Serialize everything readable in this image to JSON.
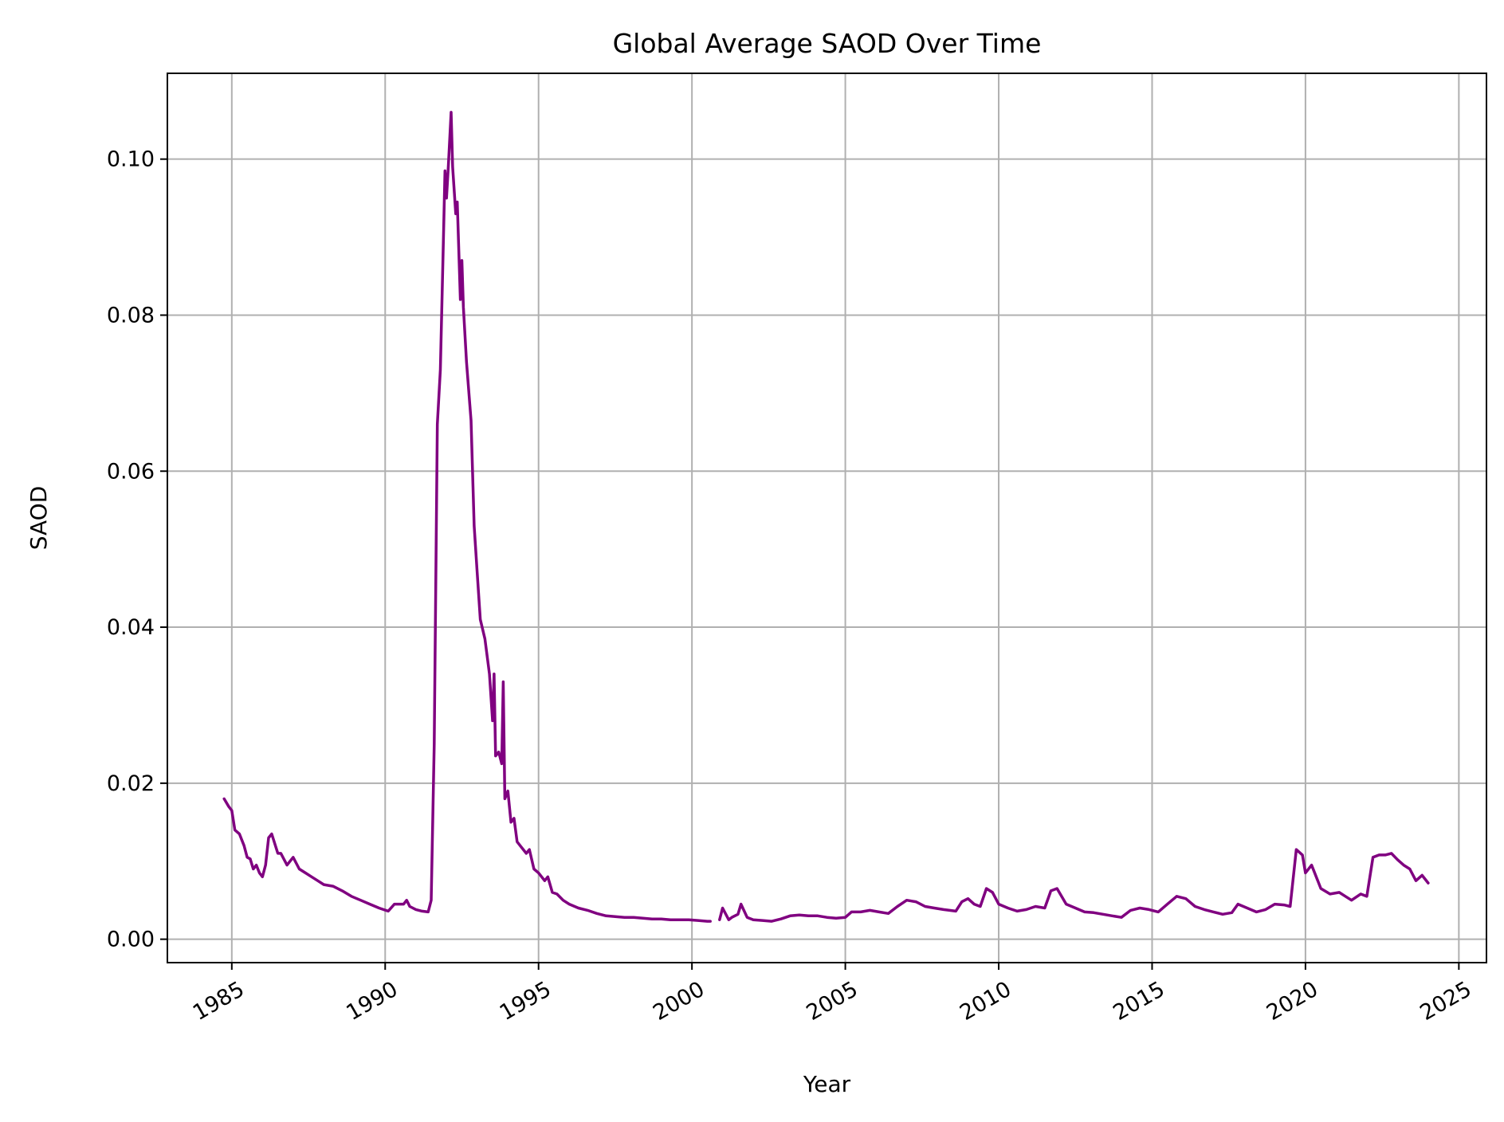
{
  "chart_data": {
    "type": "line",
    "title": "Global Average SAOD Over Time",
    "xlabel": "Year",
    "ylabel": "SAOD",
    "xlim": [
      1982.9,
      2025.9
    ],
    "ylim": [
      -0.003,
      0.111
    ],
    "x_ticks": [
      1985,
      1990,
      1995,
      2000,
      2005,
      2010,
      2015,
      2020,
      2025
    ],
    "y_ticks": [
      0.0,
      0.02,
      0.04,
      0.06,
      0.08,
      0.1
    ],
    "y_tick_labels": [
      "0.00",
      "0.02",
      "0.04",
      "0.06",
      "0.08",
      "0.10"
    ],
    "grid": true,
    "line_color": "#800080",
    "series": [
      {
        "segments": [
          {
            "x": [
              1984.75,
              1984.9,
              1985.0,
              1985.1,
              1985.25,
              1985.4,
              1985.5,
              1985.6,
              1985.7,
              1985.8,
              1985.9,
              1986.0,
              1986.1,
              1986.2,
              1986.3,
              1986.5,
              1986.6,
              1986.8,
              1987.0,
              1987.2,
              1987.4,
              1987.6,
              1987.8,
              1988.0,
              1988.3,
              1988.6,
              1988.9,
              1989.2,
              1989.5,
              1989.8,
              1990.1,
              1990.3,
              1990.6,
              1990.7,
              1990.8,
              1991.0,
              1991.2,
              1991.4,
              1991.5,
              1991.6,
              1991.7,
              1991.8,
              1991.9,
              1991.95,
              1992.0,
              1992.05,
              1992.15,
              1992.2,
              1992.3,
              1992.35,
              1992.45,
              1992.5,
              1992.55,
              1992.65,
              1992.8,
              1992.9,
              1993.0,
              1993.1,
              1993.25,
              1993.4,
              1993.5,
              1993.55,
              1993.6,
              1993.7,
              1993.8,
              1993.85,
              1993.9,
              1994.0,
              1994.1,
              1994.2,
              1994.3,
              1994.4,
              1994.6,
              1994.7,
              1994.85,
              1995.0,
              1995.2,
              1995.3,
              1995.45,
              1995.6,
              1995.8,
              1996.0,
              1996.3,
              1996.6,
              1996.9,
              1997.2,
              1997.5,
              1997.8,
              1998.1,
              1998.4,
              1998.7,
              1999.0,
              1999.3,
              1999.6,
              1999.9,
              2000.2,
              2000.5,
              2000.6
            ],
            "y": [
              0.018,
              0.017,
              0.0165,
              0.014,
              0.0135,
              0.012,
              0.0105,
              0.0103,
              0.009,
              0.0095,
              0.0085,
              0.008,
              0.0095,
              0.013,
              0.0135,
              0.011,
              0.011,
              0.0095,
              0.0105,
              0.009,
              0.0085,
              0.008,
              0.0075,
              0.007,
              0.0068,
              0.0062,
              0.0055,
              0.005,
              0.0045,
              0.004,
              0.0036,
              0.0045,
              0.0045,
              0.005,
              0.0042,
              0.0038,
              0.0036,
              0.0035,
              0.005,
              0.025,
              0.066,
              0.073,
              0.09,
              0.0985,
              0.095,
              0.0985,
              0.106,
              0.099,
              0.093,
              0.0945,
              0.082,
              0.087,
              0.081,
              0.074,
              0.0665,
              0.053,
              0.047,
              0.041,
              0.0385,
              0.034,
              0.028,
              0.034,
              0.0235,
              0.024,
              0.0225,
              0.033,
              0.018,
              0.019,
              0.015,
              0.0155,
              0.0125,
              0.012,
              0.011,
              0.0115,
              0.009,
              0.0085,
              0.0075,
              0.008,
              0.006,
              0.0058,
              0.005,
              0.0045,
              0.004,
              0.0037,
              0.0033,
              0.003,
              0.0029,
              0.0028,
              0.0028,
              0.0027,
              0.0026,
              0.0026,
              0.0025,
              0.0025,
              0.0025,
              0.0024,
              0.0023,
              0.0023
            ]
          },
          {
            "x": [
              2000.9,
              2001.0,
              2001.2,
              2001.3,
              2001.5,
              2001.6,
              2001.8,
              2002.0,
              2002.3,
              2002.6,
              2002.9,
              2003.2,
              2003.5,
              2003.8,
              2004.1,
              2004.4,
              2004.7,
              2005.0,
              2005.2,
              2005.5,
              2005.8,
              2006.1,
              2006.4,
              2006.7,
              2007.0,
              2007.3,
              2007.6,
              2007.9,
              2008.2,
              2008.6,
              2008.8,
              2009.0,
              2009.2,
              2009.4,
              2009.6,
              2009.8,
              2010.0,
              2010.3,
              2010.6,
              2010.9,
              2011.2,
              2011.5,
              2011.7,
              2011.9,
              2012.2,
              2012.5,
              2012.8,
              2013.1,
              2013.4,
              2013.7,
              2014.0,
              2014.3,
              2014.6,
              2014.9,
              2015.2,
              2015.5,
              2015.8,
              2016.1,
              2016.4,
              2016.7,
              2017.0,
              2017.3,
              2017.6,
              2017.8,
              2018.1,
              2018.4,
              2018.7,
              2019.0,
              2019.3,
              2019.5,
              2019.7,
              2019.9,
              2020.0,
              2020.2,
              2020.5,
              2020.8,
              2021.1,
              2021.3,
              2021.5,
              2021.8,
              2022.0,
              2022.2,
              2022.4,
              2022.6,
              2022.8,
              2023.0,
              2023.2,
              2023.4,
              2023.6,
              2023.8,
              2024.0
            ],
            "y": [
              0.0025,
              0.004,
              0.0025,
              0.0028,
              0.0032,
              0.0045,
              0.0028,
              0.0025,
              0.0024,
              0.0023,
              0.0026,
              0.003,
              0.0031,
              0.003,
              0.003,
              0.0028,
              0.0027,
              0.0028,
              0.0035,
              0.0035,
              0.0037,
              0.0035,
              0.0033,
              0.0042,
              0.005,
              0.0048,
              0.0042,
              0.004,
              0.0038,
              0.0036,
              0.0048,
              0.0052,
              0.0045,
              0.0042,
              0.0065,
              0.006,
              0.0045,
              0.004,
              0.0036,
              0.0038,
              0.0042,
              0.004,
              0.0062,
              0.0065,
              0.0045,
              0.004,
              0.0035,
              0.0034,
              0.0032,
              0.003,
              0.0028,
              0.0037,
              0.004,
              0.0038,
              0.0035,
              0.0045,
              0.0055,
              0.0052,
              0.0042,
              0.0038,
              0.0035,
              0.0032,
              0.0034,
              0.0045,
              0.004,
              0.0035,
              0.0038,
              0.0045,
              0.0044,
              0.0042,
              0.0115,
              0.0108,
              0.0085,
              0.0095,
              0.0065,
              0.0058,
              0.006,
              0.0055,
              0.005,
              0.0058,
              0.0055,
              0.0105,
              0.0108,
              0.0108,
              0.011,
              0.0102,
              0.0095,
              0.009,
              0.0075,
              0.0082,
              0.0072
            ]
          }
        ]
      }
    ]
  }
}
